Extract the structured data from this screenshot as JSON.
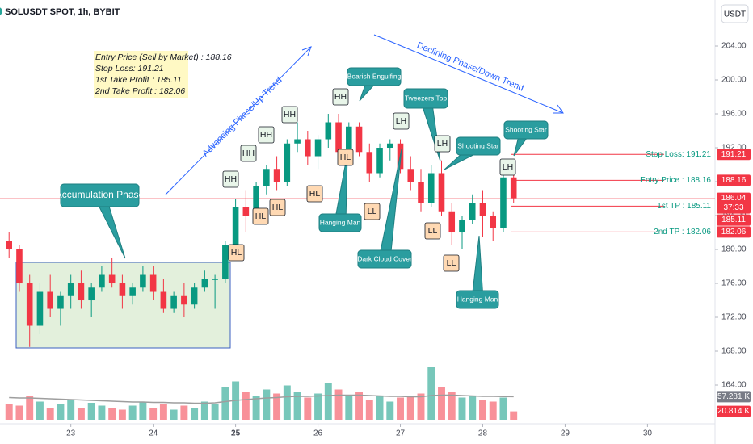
{
  "header": {
    "symbol": "SOLUSDT SPOT, 1h, BYBIT",
    "currency_button": "USDT"
  },
  "chart_data": {
    "type": "candlestick",
    "x": [
      22.25,
      22.375,
      22.5,
      22.625,
      22.75,
      22.875,
      23.0,
      23.125,
      23.25,
      23.375,
      23.5,
      23.625,
      23.75,
      23.875,
      24.0,
      24.125,
      24.25,
      24.375,
      24.5,
      24.625,
      24.75,
      24.875,
      25.0,
      25.125,
      25.25,
      25.375,
      25.5,
      25.625,
      25.75,
      25.875,
      26.0,
      26.125,
      26.25,
      26.375,
      26.5,
      26.625,
      26.75,
      26.875,
      27.0,
      27.125,
      27.25,
      27.375,
      27.5,
      27.625,
      27.75,
      27.875,
      28.0,
      28.125,
      28.25,
      28.375
    ],
    "open": [
      181,
      180,
      176,
      171,
      175,
      173,
      174.5,
      176,
      174,
      175.5,
      177,
      176,
      174.5,
      175.5,
      177,
      175,
      173,
      174.5,
      173.5,
      175.5,
      176.5,
      176.5,
      180.5,
      185,
      184,
      187.5,
      189.5,
      188,
      192.5,
      193,
      191,
      193,
      195,
      191.5,
      194.5,
      191.5,
      189,
      192,
      192.5,
      189.5,
      188,
      185.5,
      189,
      184.5,
      182,
      183.5,
      185.5,
      184,
      182.5,
      188.5
    ],
    "high": [
      182,
      180.5,
      177,
      176,
      177,
      175,
      177,
      177.5,
      176,
      178,
      179,
      177,
      176,
      178,
      178,
      176.5,
      175,
      176,
      176,
      177.5,
      177,
      181,
      186,
      187,
      188,
      190,
      191,
      193,
      195,
      194,
      193.5,
      196,
      196,
      195,
      195,
      192.5,
      192.5,
      193,
      193,
      191,
      189.5,
      190,
      190.5,
      185.5,
      184,
      186.5,
      187,
      184.5,
      189,
      189.5
    ],
    "low": [
      179,
      175,
      168.5,
      170,
      172,
      171,
      173,
      173,
      172,
      175,
      175.5,
      173,
      173.5,
      175,
      174,
      172.5,
      172.5,
      172,
      173,
      175,
      173,
      176,
      180,
      182,
      183.5,
      186.5,
      187,
      187.5,
      191.5,
      190,
      189.5,
      192,
      190.5,
      190.5,
      191,
      188,
      188.5,
      190.5,
      189,
      187,
      184.5,
      185,
      184,
      180.5,
      180,
      183,
      181.5,
      181,
      182,
      185.5
    ],
    "close": [
      180,
      176,
      171,
      175,
      173,
      174.5,
      176,
      174,
      175.5,
      177,
      176,
      174.5,
      175.5,
      177,
      175,
      173,
      174.5,
      173.5,
      175.5,
      176.5,
      176.5,
      180.5,
      185,
      184,
      187.5,
      189.5,
      188,
      192.5,
      193,
      191,
      193,
      195,
      191.5,
      194.5,
      191.5,
      189,
      192,
      192.5,
      189.5,
      188,
      185.5,
      189,
      184.5,
      182,
      183.5,
      185.5,
      184,
      182.5,
      188.5,
      186.04
    ],
    "up_color": "#089981",
    "down_color": "#f23645",
    "xlim": [
      22.14,
      30.82
    ],
    "xticks": [
      23,
      24,
      25,
      26,
      27,
      28,
      29,
      30
    ],
    "ylim": [
      159.43,
      209.43
    ],
    "yticks": [
      {
        "value": 164,
        "label": "164.00"
      },
      {
        "value": 168,
        "label": "168.00"
      },
      {
        "value": 172,
        "label": "172.00"
      },
      {
        "value": 176,
        "label": "176.00"
      },
      {
        "value": 180,
        "label": "180.00"
      },
      {
        "value": 184,
        "label": "184.00"
      },
      {
        "value": 188,
        "label": "188.00"
      },
      {
        "value": 192,
        "label": "192.00"
      },
      {
        "value": 196,
        "label": "196.00"
      },
      {
        "value": 200,
        "label": "200.00"
      },
      {
        "value": 204,
        "label": "204.00"
      }
    ],
    "volume": {
      "values": [
        40,
        35,
        60,
        45,
        30,
        38,
        50,
        28,
        42,
        35,
        30,
        25,
        35,
        45,
        30,
        40,
        25,
        35,
        30,
        45,
        40,
        80,
        95,
        70,
        60,
        75,
        65,
        85,
        70,
        55,
        65,
        90,
        75,
        60,
        70,
        50,
        60,
        45,
        55,
        60,
        65,
        130,
        80,
        70,
        55,
        60,
        50,
        45,
        55,
        20.814
      ],
      "last_label": "20.814 K",
      "ylim": [
        0,
        280
      ]
    },
    "volume_ma": {
      "values": [
        55,
        54,
        54,
        53,
        52,
        51,
        50,
        49,
        48,
        47,
        46,
        45,
        44,
        44,
        43,
        43,
        42,
        42,
        41,
        41,
        42,
        45,
        48,
        50,
        52,
        54,
        55,
        57,
        58,
        58,
        59,
        60,
        61,
        61,
        61,
        60,
        59,
        58,
        58,
        57,
        57,
        60,
        61,
        61,
        60,
        59,
        58,
        58,
        57.5,
        57.281
      ],
      "last_label": "57.281 K",
      "color": "#9e9e9e"
    },
    "countdown": "37:33",
    "levels": [
      {
        "label": "Stop Loss: 191.21",
        "value": 191.21
      },
      {
        "label": "Entry Price : 188.16",
        "value": 188.16
      },
      {
        "label": "1st TP : 185.11",
        "value": 185.11
      },
      {
        "label": "2nd TP : 182.06",
        "value": 182.06
      }
    ],
    "note": [
      "Entry Price (Sell by Market) : 188.16",
      "Stop Loss: 191.21",
      "1st Take Profit : 185.11",
      "2nd Take Profit : 182.06"
    ],
    "callouts": [
      "Accumulation Phase",
      "Bearish Engulfing",
      "Tweezers Top",
      "Shooting Star",
      "Shooting Star",
      "Hanging Man",
      "Dark Cloud Cover",
      "Hanging Man"
    ],
    "swing_labels": [
      "HH",
      "HH",
      "HH",
      "HH",
      "HH",
      "HL",
      "HL",
      "HL",
      "HL",
      "HL",
      "LL",
      "LL",
      "LL",
      "LH",
      "LH",
      "LH"
    ],
    "trend_labels": [
      "Advancing Phase/Up Trend",
      "Declining Phase/Down Trend"
    ]
  }
}
